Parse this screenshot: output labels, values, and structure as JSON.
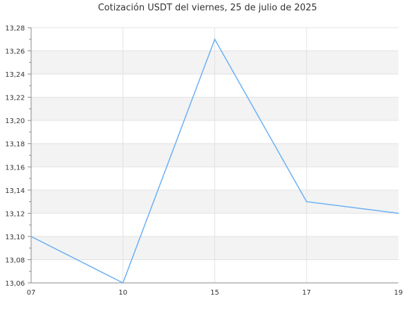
{
  "chart_data": {
    "type": "line",
    "title": "Cotización USDT del viernes, 25 de julio de 2025",
    "xlabel": "",
    "ylabel": "",
    "categories": [
      "07",
      "10",
      "15",
      "17",
      "19"
    ],
    "series": [
      {
        "values": [
          13.1,
          13.06,
          13.27,
          13.13,
          13.12
        ],
        "color": "#6ab0f5"
      }
    ],
    "ylim": [
      13.06,
      13.28
    ],
    "yticks": [
      "13,06",
      "13,08",
      "13,10",
      "13,12",
      "13,14",
      "13,16",
      "13,18",
      "13,20",
      "13,22",
      "13,24",
      "13,26",
      "13,28"
    ],
    "grid": true,
    "band_color": "#f3f3f3",
    "grid_color": "#e2e2e2",
    "axis_color": "#888888"
  }
}
